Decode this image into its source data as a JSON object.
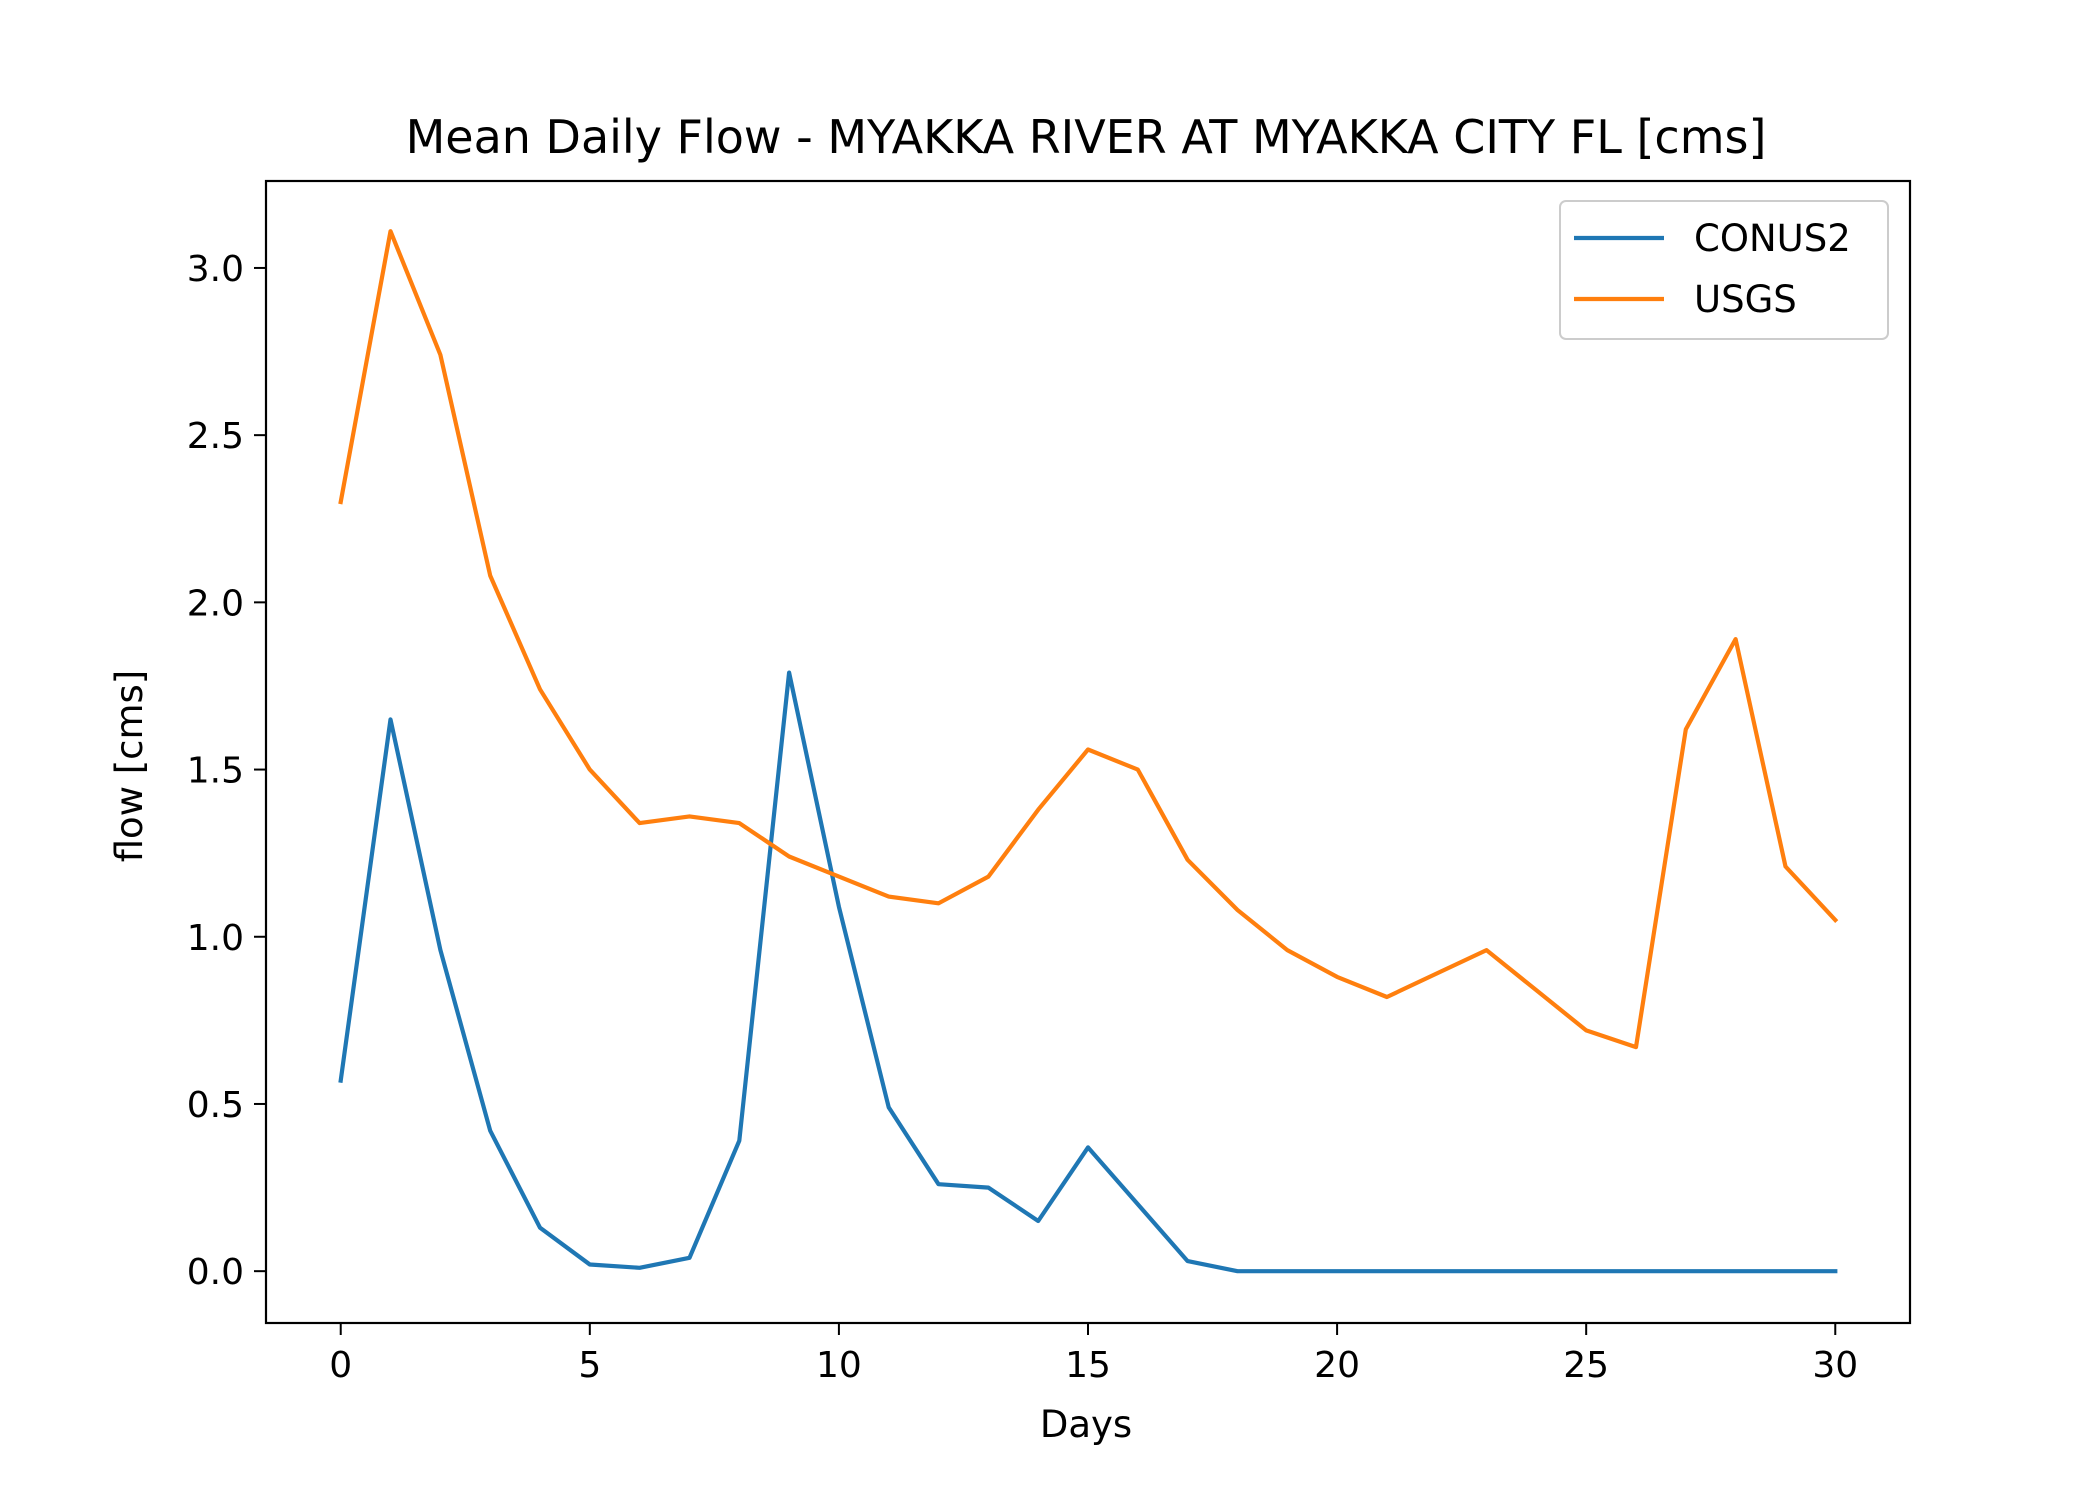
{
  "chart_data": {
    "type": "line",
    "title": "Mean Daily Flow - MYAKKA RIVER AT MYAKKA CITY FL [cms]",
    "xlabel": "Days",
    "ylabel": "flow [cms]",
    "xlim": [
      -1.5,
      31.5
    ],
    "ylim": [
      -0.155,
      3.26
    ],
    "xticks": [
      0,
      5,
      10,
      15,
      20,
      25,
      30
    ],
    "xtick_labels": [
      "0",
      "5",
      "10",
      "15",
      "20",
      "25",
      "30"
    ],
    "yticks": [
      0.0,
      0.5,
      1.0,
      1.5,
      2.0,
      2.5,
      3.0
    ],
    "ytick_labels": [
      "0.0",
      "0.5",
      "1.0",
      "1.5",
      "2.0",
      "2.5",
      "3.0"
    ],
    "grid": false,
    "legend_position": "top-right",
    "x": [
      0,
      1,
      2,
      3,
      4,
      5,
      6,
      7,
      8,
      9,
      10,
      11,
      12,
      13,
      14,
      15,
      16,
      17,
      18,
      19,
      20,
      21,
      22,
      23,
      24,
      25,
      26,
      27,
      28,
      29,
      30
    ],
    "series": [
      {
        "name": "CONUS2",
        "color": "#1f77b4",
        "values": [
          0.57,
          1.65,
          0.96,
          0.42,
          0.13,
          0.02,
          0.01,
          0.04,
          0.39,
          1.79,
          1.09,
          0.49,
          0.26,
          0.25,
          0.15,
          0.37,
          0.2,
          0.03,
          0.0,
          0.0,
          0.0,
          0.0,
          0.0,
          0.0,
          0.0,
          0.0,
          0.0,
          0.0,
          0.0,
          0.0,
          0.0
        ]
      },
      {
        "name": "USGS",
        "color": "#ff7f0e",
        "values": [
          2.3,
          3.11,
          2.74,
          2.08,
          1.74,
          1.5,
          1.34,
          1.36,
          1.34,
          1.24,
          1.18,
          1.12,
          1.1,
          1.18,
          1.38,
          1.56,
          1.5,
          1.23,
          1.08,
          0.96,
          0.88,
          0.82,
          0.89,
          0.96,
          0.84,
          0.72,
          0.67,
          1.62,
          1.89,
          1.21,
          1.05
        ]
      }
    ]
  }
}
